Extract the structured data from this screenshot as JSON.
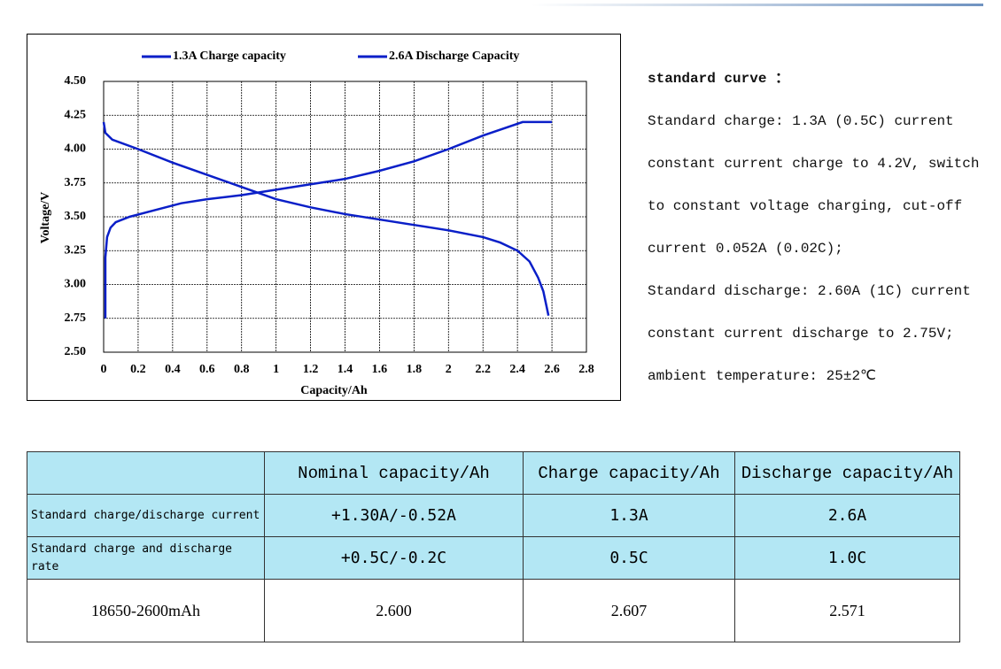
{
  "chart_data": {
    "type": "line",
    "xlabel": "Capacity/Ah",
    "ylabel": "Voltage/V",
    "xlim": [
      0,
      2.8
    ],
    "ylim": [
      2.5,
      4.5
    ],
    "xticks": [
      0,
      0.2,
      0.4,
      0.6,
      0.8,
      1,
      1.2,
      1.4,
      1.6,
      1.8,
      2,
      2.2,
      2.4,
      2.6,
      2.8
    ],
    "yticks": [
      {
        "value": 4.5,
        "label": "4.50"
      },
      4.25,
      {
        "value": 4,
        "label": "4.00"
      },
      3.75,
      {
        "value": 3.5,
        "label": "3.50"
      },
      3.25,
      {
        "value": 3,
        "label": "3.00"
      },
      2.75,
      {
        "value": 2.5,
        "label": "2.50"
      }
    ],
    "grid": true,
    "series": [
      {
        "name": "1.3A Charge capacity",
        "color": "#0a1fc8",
        "x": [
          0.01,
          0.01,
          0.02,
          0.04,
          0.07,
          0.15,
          0.3,
          0.45,
          0.6,
          0.8,
          1.0,
          1.2,
          1.4,
          1.6,
          1.8,
          2.0,
          2.2,
          2.43,
          2.6
        ],
        "values": [
          2.75,
          3.2,
          3.35,
          3.42,
          3.46,
          3.5,
          3.55,
          3.6,
          3.63,
          3.66,
          3.7,
          3.74,
          3.78,
          3.84,
          3.91,
          4.0,
          4.1,
          4.2,
          4.2
        ]
      },
      {
        "name": "2.6A Discharge Capacity",
        "color": "#0a1fc8",
        "x": [
          0,
          0.01,
          0.05,
          0.2,
          0.4,
          0.6,
          0.8,
          1.0,
          1.2,
          1.4,
          1.6,
          1.8,
          2.0,
          2.2,
          2.3,
          2.4,
          2.47,
          2.52,
          2.55,
          2.58
        ],
        "values": [
          4.2,
          4.12,
          4.07,
          4.0,
          3.9,
          3.81,
          3.72,
          3.63,
          3.57,
          3.52,
          3.48,
          3.44,
          3.4,
          3.35,
          3.31,
          3.25,
          3.17,
          3.05,
          2.95,
          2.77
        ]
      }
    ]
  },
  "notes": {
    "heading": "standard curve ：",
    "lines": [
      "Standard charge: 1.3A (0.5C) current",
      "constant current charge to 4.2V, switch",
      "to constant voltage charging, cut-off",
      "current 0.052A (0.02C);",
      "Standard discharge: 2.60A (1C) current",
      "constant current discharge to 2.75V;",
      "ambient temperature: 25±2℃"
    ]
  },
  "table": {
    "header": [
      "Nominal capacity/Ah",
      "Charge capacity/Ah",
      "Discharge capacity/Ah"
    ],
    "rows": [
      [
        "Standard charge/discharge current",
        "+1.30A/-0.52A",
        "1.3A",
        "2.6A"
      ],
      [
        "Standard charge and discharge rate",
        "+0.5C/-0.2C",
        "0.5C",
        "1.0C"
      ],
      [
        "18650-2600mAh",
        "2.600",
        "2.607",
        "2.571"
      ]
    ]
  }
}
